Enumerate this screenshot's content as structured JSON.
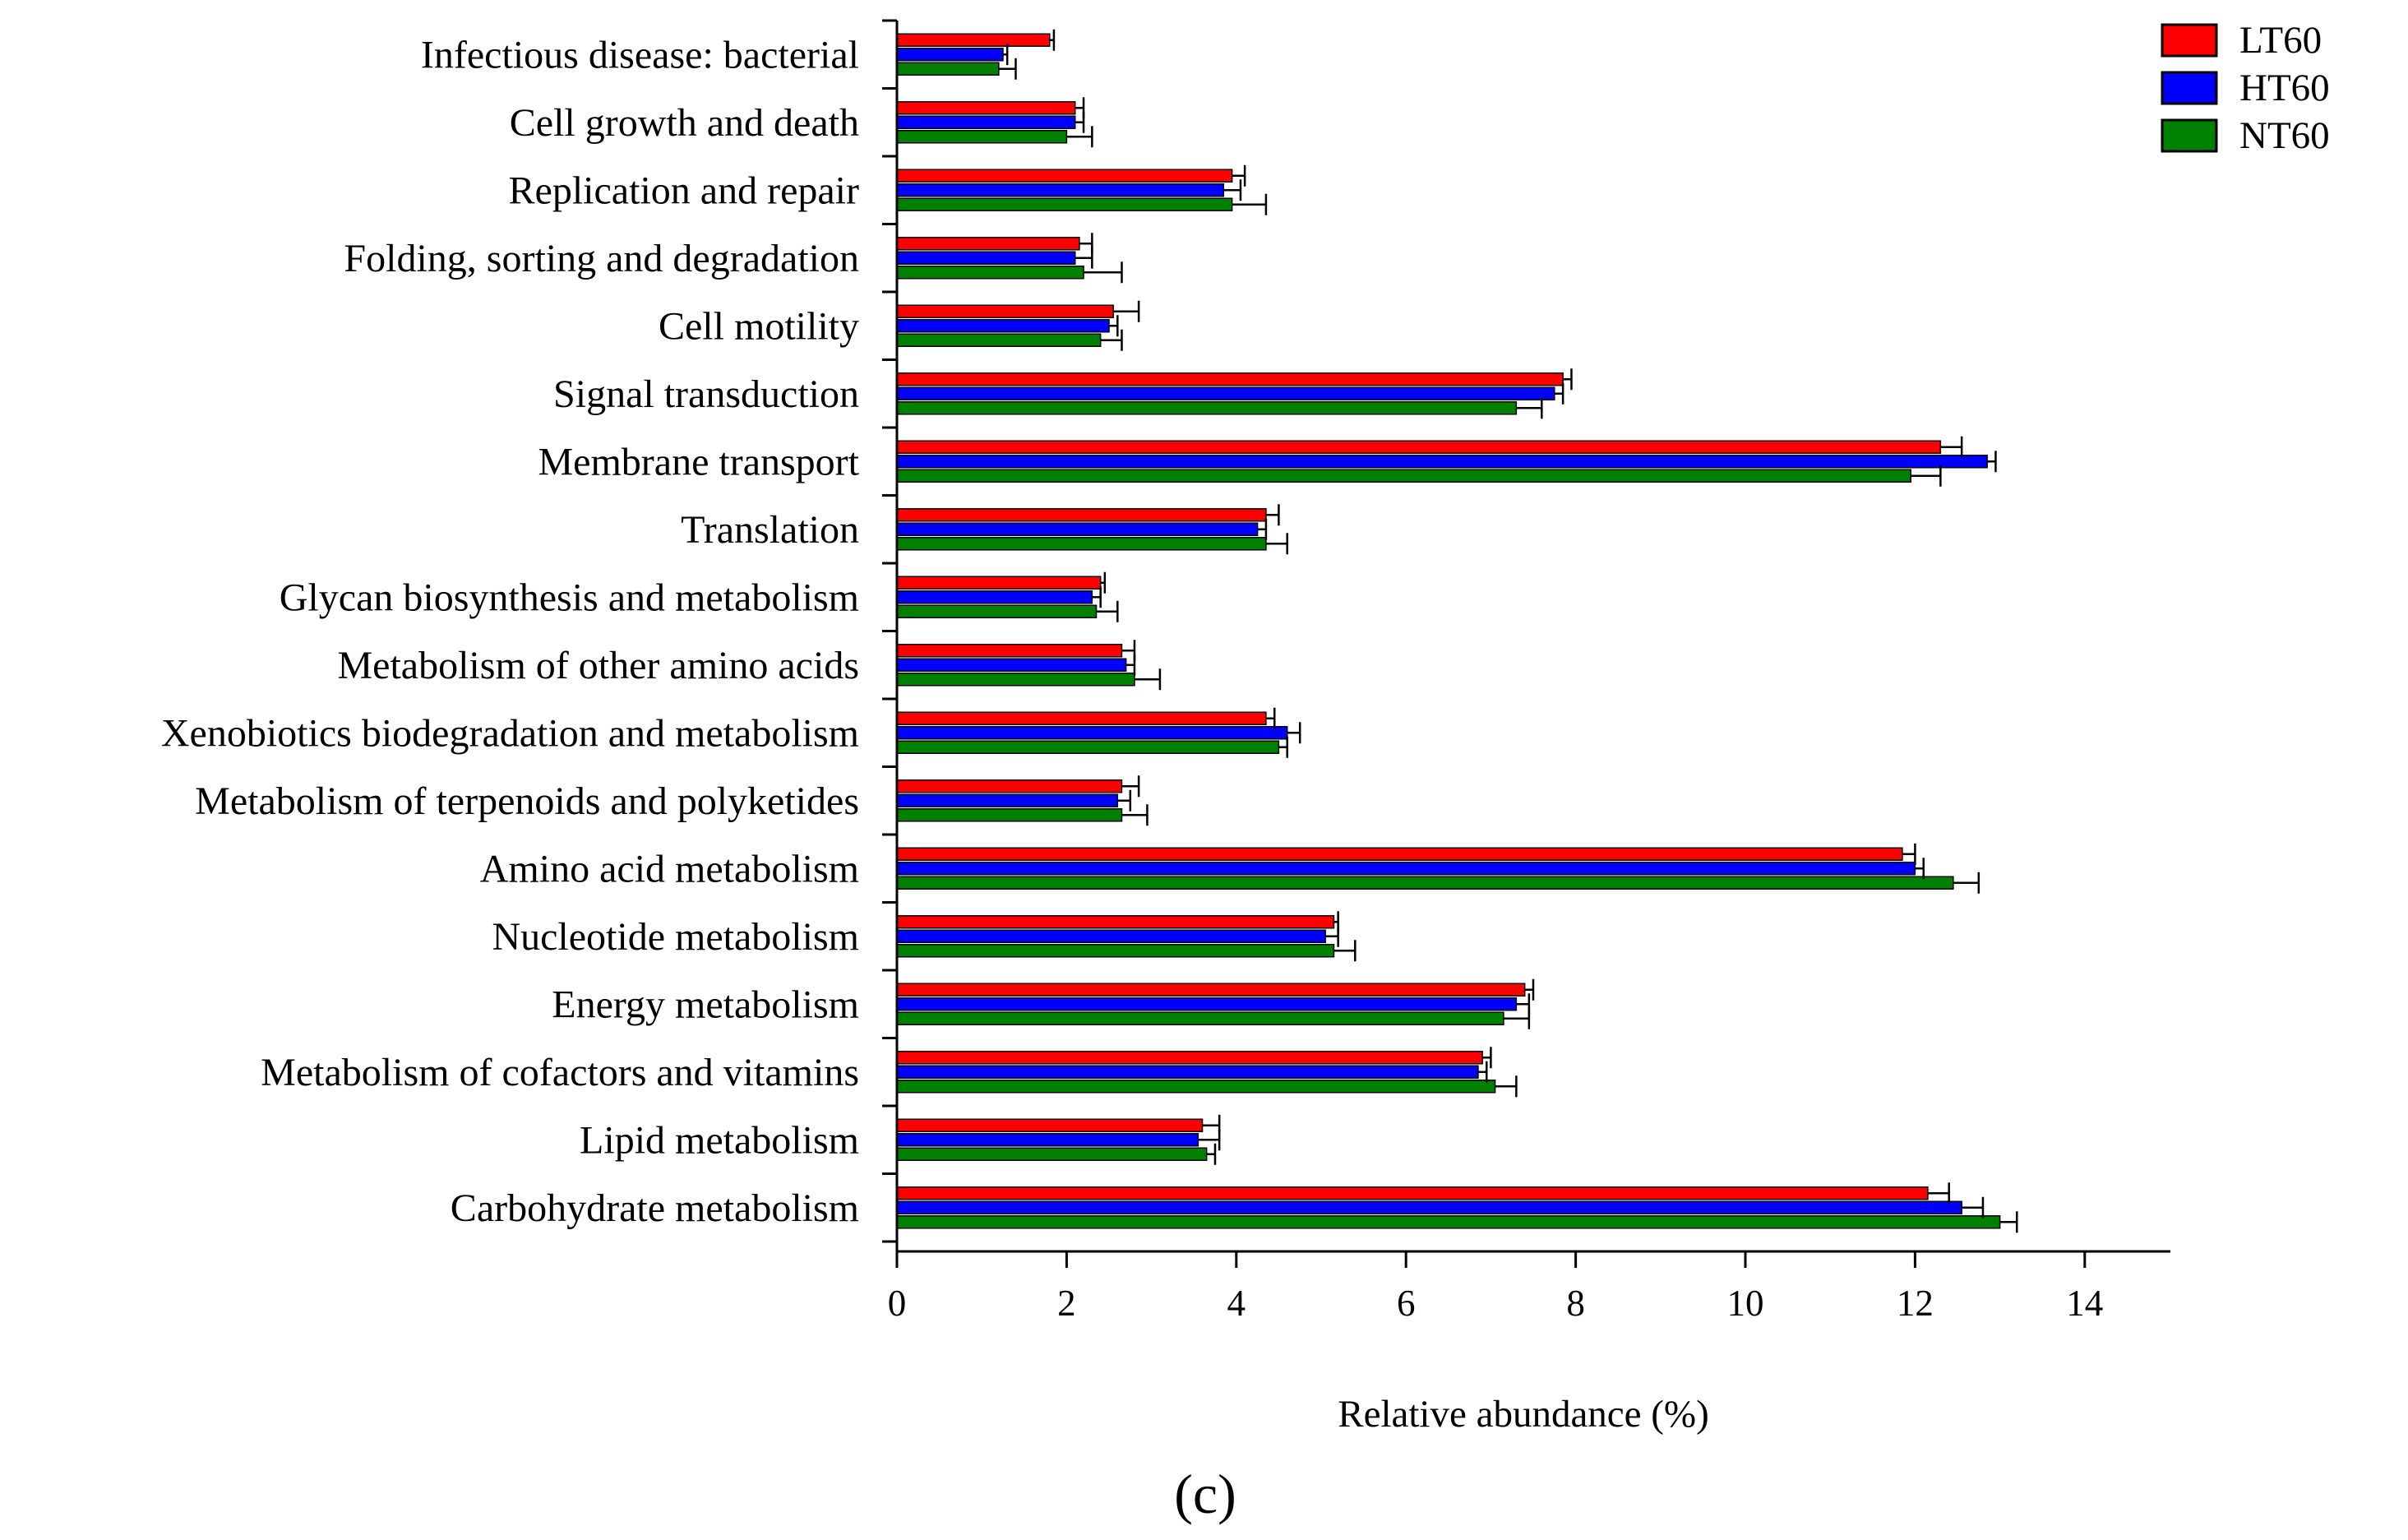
{
  "chart_data": {
    "type": "bar",
    "orientation": "horizontal",
    "title": "",
    "xlabel": "Relative abundance (%)",
    "ylabel": "",
    "xlim": [
      0,
      15
    ],
    "xticks": [
      0,
      2,
      4,
      6,
      8,
      10,
      12,
      14
    ],
    "panel_label": "(c)",
    "legend_position": "top-right",
    "colors": {
      "LT60": "#ff0000",
      "HT60": "#0000ff",
      "NT60": "#008000"
    },
    "categories": [
      "Infectious disease: bacterial",
      "Cell growth and death",
      "Replication and repair",
      "Folding, sorting and degradation",
      "Cell motility",
      "Signal transduction",
      "Membrane transport",
      "Translation",
      "Glycan biosynthesis and metabolism",
      "Metabolism of other amino acids",
      "Xenobiotics biodegradation and metabolism",
      "Metabolism of terpenoids and polyketides",
      "Amino acid metabolism",
      "Nucleotide metabolism",
      "Energy metabolism",
      "Metabolism of cofactors and vitamins",
      "Lipid metabolism",
      "Carbohydrate metabolism"
    ],
    "series": [
      {
        "name": "LT60",
        "values": [
          1.8,
          2.1,
          3.95,
          2.15,
          2.55,
          7.85,
          12.3,
          4.35,
          2.4,
          2.65,
          4.35,
          2.65,
          11.85,
          5.15,
          7.4,
          6.9,
          3.6,
          12.15
        ],
        "errors": [
          0.05,
          0.1,
          0.15,
          0.15,
          0.3,
          0.1,
          0.25,
          0.15,
          0.05,
          0.15,
          0.1,
          0.2,
          0.15,
          0.05,
          0.1,
          0.1,
          0.2,
          0.25
        ]
      },
      {
        "name": "HT60",
        "values": [
          1.25,
          2.1,
          3.85,
          2.1,
          2.5,
          7.75,
          12.85,
          4.25,
          2.3,
          2.7,
          4.6,
          2.6,
          12.0,
          5.05,
          7.3,
          6.85,
          3.55,
          12.55
        ],
        "errors": [
          0.05,
          0.1,
          0.2,
          0.2,
          0.1,
          0.1,
          0.1,
          0.1,
          0.1,
          0.1,
          0.15,
          0.15,
          0.1,
          0.15,
          0.15,
          0.1,
          0.25,
          0.25
        ]
      },
      {
        "name": "NT60",
        "values": [
          1.2,
          2.0,
          3.95,
          2.2,
          2.4,
          7.3,
          11.95,
          4.35,
          2.35,
          2.8,
          4.5,
          2.65,
          12.45,
          5.15,
          7.15,
          7.05,
          3.65,
          13.0
        ],
        "errors": [
          0.2,
          0.3,
          0.4,
          0.45,
          0.25,
          0.3,
          0.35,
          0.25,
          0.25,
          0.3,
          0.1,
          0.3,
          0.3,
          0.25,
          0.3,
          0.25,
          0.1,
          0.2
        ]
      }
    ]
  }
}
